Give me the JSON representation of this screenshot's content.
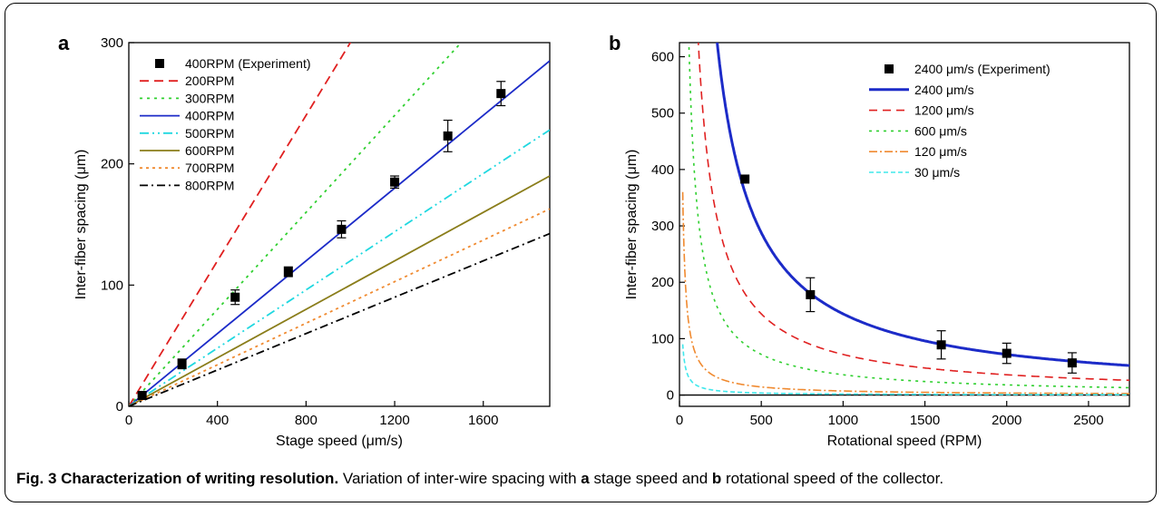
{
  "chart_data": [
    {
      "type": "line",
      "panel_label": "a",
      "xlabel": "Stage speed (μm/s)",
      "ylabel": "Inter-fiber spacing (μm)",
      "xlim": [
        0,
        1900
      ],
      "ylim": [
        0,
        300
      ],
      "xticks": [
        0,
        400,
        800,
        1200,
        1600
      ],
      "yticks": [
        0,
        100,
        200,
        300
      ],
      "legend_position": "top-left",
      "grid": false,
      "scatter": {
        "name": "400RPM (Experiment)",
        "x": [
          60,
          240,
          480,
          720,
          960,
          1200,
          1440,
          1680
        ],
        "y": [
          9,
          35,
          90,
          111,
          146,
          185,
          223,
          258
        ],
        "err": [
          3,
          4,
          6,
          4,
          7,
          5,
          13,
          10
        ]
      },
      "series": [
        {
          "name": "200RPM",
          "slope": 0.3,
          "color": "#e02020",
          "dash": "10,6"
        },
        {
          "name": "300RPM",
          "slope": 0.2,
          "color": "#30d030",
          "dash": "3,5"
        },
        {
          "name": "400RPM",
          "slope": 0.15,
          "color": "#1c2bc8",
          "dash": ""
        },
        {
          "name": "500RPM",
          "slope": 0.12,
          "color": "#20d8e0",
          "dash": "10,4,2,4,2,4"
        },
        {
          "name": "600RPM",
          "slope": 0.1,
          "color": "#8a7d1a",
          "dash": ""
        },
        {
          "name": "700RPM",
          "slope": 0.0857,
          "color": "#f08a30",
          "dash": "3,4"
        },
        {
          "name": "800RPM",
          "slope": 0.075,
          "color": "#000000",
          "dash": "9,4,2,4"
        }
      ]
    },
    {
      "type": "line",
      "panel_label": "b",
      "xlabel": "Rotational speed (RPM)",
      "ylabel": "Inter-fiber spacing (μm)",
      "xlim": [
        0,
        2750
      ],
      "ylim": [
        -20,
        625
      ],
      "xticks": [
        0,
        500,
        1000,
        1500,
        2000,
        2500
      ],
      "yticks": [
        0,
        100,
        200,
        300,
        400,
        500,
        600
      ],
      "legend_position": "top-right",
      "grid": false,
      "zero_line": true,
      "scatter": {
        "name": "2400 μm/s (Experiment)",
        "x": [
          400,
          800,
          1600,
          2000,
          2400
        ],
        "y": [
          383,
          178,
          89,
          74,
          57
        ],
        "err": [
          0,
          30,
          25,
          18,
          18
        ]
      },
      "series": [
        {
          "name": "2400 μm/s",
          "k": 144000,
          "color": "#1c2bc8",
          "dash": "",
          "width": 3
        },
        {
          "name": "1200 μm/s",
          "k": 72000,
          "color": "#e02020",
          "dash": "9,6",
          "width": 1.6
        },
        {
          "name": "600 μm/s",
          "k": 36000,
          "color": "#30d030",
          "dash": "3,5",
          "width": 1.6
        },
        {
          "name": "120 μm/s",
          "k": 7200,
          "color": "#f08a30",
          "dash": "9,3,2,3",
          "width": 1.6
        },
        {
          "name": "30 μm/s",
          "k": 1800,
          "color": "#40e8ec",
          "dash": "5,3",
          "width": 1.6
        }
      ]
    }
  ],
  "caption": {
    "fig_label": "Fig. 3",
    "title": "Characterization of writing resolution.",
    "text_1": " Variation of inter-wire spacing with ",
    "bold_a": "a",
    "text_2": " stage speed and ",
    "bold_b": "b",
    "text_3": " rotational speed of the collector."
  }
}
